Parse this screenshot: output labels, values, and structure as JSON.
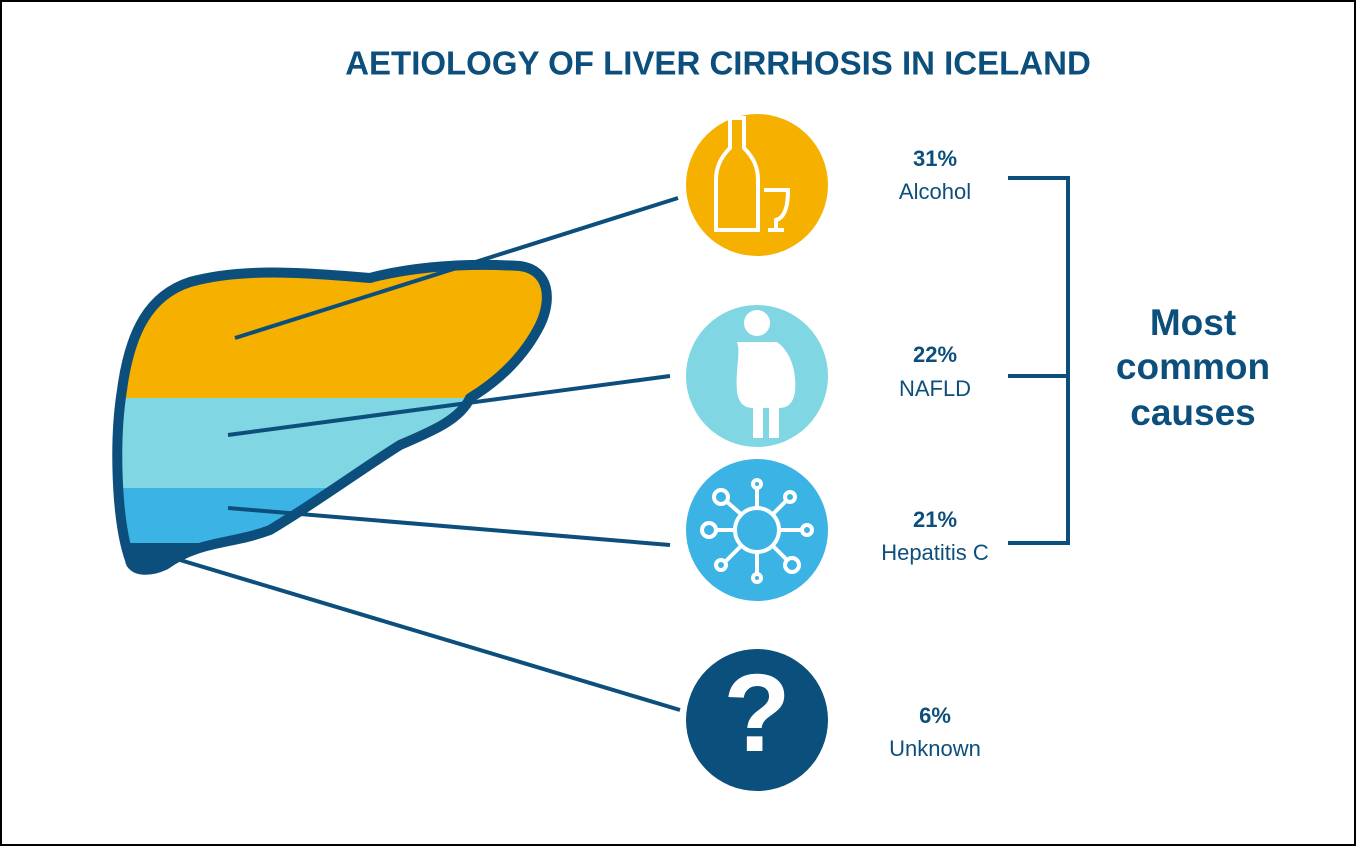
{
  "title": "AETIOLOGY OF LIVER CIRRHOSIS IN ICELAND",
  "causes": [
    {
      "percent": "31%",
      "label": "Alcohol"
    },
    {
      "percent": "22%",
      "label": "NAFLD"
    },
    {
      "percent": "21%",
      "label": "Hepatitis C"
    },
    {
      "percent": "6%",
      "label": "Unknown",
      "icon": "?"
    }
  ],
  "bracket_label": [
    "Most",
    "common",
    "causes"
  ]
}
